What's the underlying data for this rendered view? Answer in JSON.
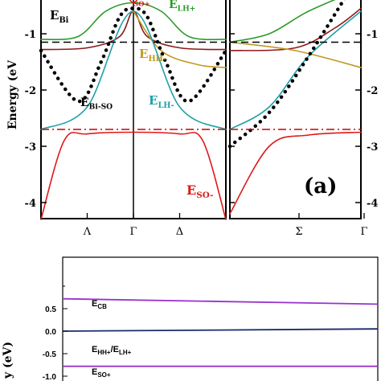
{
  "chart_data": [
    {
      "type": "line",
      "panel_label": "(a)",
      "ylabel": "Energy (eV",
      "ylim": [
        -4.35,
        0.3
      ],
      "yticks": [
        "-1",
        "-2",
        "-3",
        "-4"
      ],
      "xticks_left": [
        "Λ",
        "Γ",
        "Δ"
      ],
      "xticks_right": [
        "Σ",
        "Γ"
      ],
      "left_panel_x_range": [
        -1,
        1
      ],
      "right_panel_x_range": [
        0,
        1
      ],
      "reference_lines": [
        {
          "label": "E_Bi",
          "y": -1.15,
          "style": "dashed",
          "color": "#000000"
        },
        {
          "label": "E_Bi-SO",
          "y": -2.7,
          "style": "dash-dot",
          "color": "#cc0000"
        }
      ],
      "series": [
        {
          "name": "E_LH+",
          "color": "#2a9a2a",
          "left": [
            [
              -1,
              -1.1
            ],
            [
              -0.6,
              -1.05
            ],
            [
              -0.3,
              -0.6
            ],
            [
              0,
              -0.45
            ],
            [
              0.3,
              -0.6
            ],
            [
              0.6,
              -1.05
            ],
            [
              1,
              -1.1
            ]
          ],
          "right": [
            [
              0,
              -1.15
            ],
            [
              0.3,
              -1.0
            ],
            [
              0.6,
              -0.6
            ],
            [
              1,
              -0.2
            ]
          ]
        },
        {
          "name": "E_HH+",
          "color": "#8b1a1a",
          "left": [
            [
              -1,
              -1.28
            ],
            [
              -0.5,
              -1.25
            ],
            [
              -0.15,
              -1.05
            ],
            [
              0,
              -0.6
            ],
            [
              0.15,
              -1.05
            ],
            [
              0.5,
              -1.25
            ],
            [
              1,
              -1.28
            ]
          ],
          "right": [
            [
              0,
              -1.3
            ],
            [
              0.5,
              -1.25
            ],
            [
              0.8,
              -0.9
            ],
            [
              1,
              -0.55
            ]
          ]
        },
        {
          "name": "E_HH-",
          "color": "#c09a20",
          "left": [
            [
              0,
              -0.6
            ],
            [
              0.3,
              -1.3
            ],
            [
              0.7,
              -1.55
            ],
            [
              1,
              -1.6
            ]
          ],
          "right": [
            [
              0,
              -1.15
            ],
            [
              0.5,
              -1.3
            ],
            [
              1,
              -1.6
            ]
          ]
        },
        {
          "name": "E_LH-",
          "color": "#1fa0a8",
          "left": [
            [
              -1,
              -2.7
            ],
            [
              -0.5,
              -2.3
            ],
            [
              0,
              -0.6
            ],
            [
              0.5,
              -2.3
            ],
            [
              1,
              -2.7
            ]
          ],
          "right": [
            [
              0,
              -2.7
            ],
            [
              0.3,
              -2.3
            ],
            [
              0.6,
              -1.4
            ],
            [
              1,
              -0.6
            ]
          ]
        },
        {
          "name": "E_SO-",
          "color": "#dd1a1a",
          "left": [
            [
              -1,
              -4.3
            ],
            [
              -0.75,
              -2.9
            ],
            [
              -0.5,
              -2.78
            ],
            [
              0,
              -2.75
            ],
            [
              0.5,
              -2.78
            ],
            [
              0.75,
              -2.9
            ],
            [
              1,
              -4.3
            ]
          ],
          "right": [
            [
              0,
              -4.2
            ],
            [
              0.3,
              -3.0
            ],
            [
              0.6,
              -2.8
            ],
            [
              1,
              -2.75
            ]
          ]
        },
        {
          "name": "E_SO+",
          "color": "#dd1a1a",
          "left": [
            [
              -0.2,
              0.3
            ],
            [
              0,
              -0.45
            ],
            [
              0.2,
              0.3
            ]
          ],
          "right": []
        },
        {
          "name": "dotted",
          "color": "#000000",
          "left": [
            [
              -1,
              -1.3
            ],
            [
              -0.6,
              -2.2
            ],
            [
              -0.35,
              -1.5
            ],
            [
              -0.15,
              -0.7
            ],
            [
              0,
              -0.55
            ],
            [
              0.15,
              -0.7
            ],
            [
              0.35,
              -1.5
            ],
            [
              0.6,
              -2.2
            ],
            [
              1,
              -1.3
            ]
          ],
          "right": [
            [
              0,
              -3.0
            ],
            [
              0.3,
              -2.4
            ],
            [
              0.6,
              -1.4
            ],
            [
              1,
              0.1
            ]
          ]
        }
      ],
      "curve_labels": [
        {
          "text": "E",
          "sub": "Bi",
          "color": "#000000"
        },
        {
          "text": "E",
          "sub": "LH+",
          "color": "#2a9a2a"
        },
        {
          "text": "E",
          "sub": "HH-",
          "color": "#c09a20"
        },
        {
          "text": "E",
          "sub": "LH-",
          "color": "#1fa0a8"
        },
        {
          "text": "E",
          "sub": "Bi-SO",
          "color": "#000000"
        },
        {
          "text": "E",
          "sub": "SO-",
          "color": "#dd1a1a"
        },
        {
          "text": "",
          "sub": "SO+",
          "color": "#dd1a1a"
        }
      ]
    },
    {
      "type": "line",
      "ylabel": "y (eV)",
      "ylim": [
        -1.05,
        0.85
      ],
      "yticks": [
        "0.5",
        "0.0",
        "-0.5",
        "-1.0"
      ],
      "ytick_values": [
        0.5,
        0.0,
        -0.5,
        -1.0
      ],
      "xlim": [
        0,
        1
      ],
      "series": [
        {
          "name": "E_CB",
          "color": "#9933cc",
          "points": [
            [
              0,
              0.72
            ],
            [
              1,
              0.6
            ]
          ]
        },
        {
          "name": "E_HH+/E_LH+",
          "color": "#1a2a6e",
          "points": [
            [
              0,
              0.0
            ],
            [
              1,
              0.05
            ]
          ]
        },
        {
          "name": "E_SO+",
          "color": "#9933cc",
          "points": [
            [
              0,
              -0.78
            ],
            [
              1,
              -0.78
            ]
          ]
        }
      ],
      "curve_labels": [
        {
          "text": "E",
          "sub": "CB"
        },
        {
          "text": "E",
          "sub": "HH+",
          "text2": "/E",
          "sub2": "LH+"
        },
        {
          "text": "E",
          "sub": "SO+"
        }
      ]
    }
  ]
}
